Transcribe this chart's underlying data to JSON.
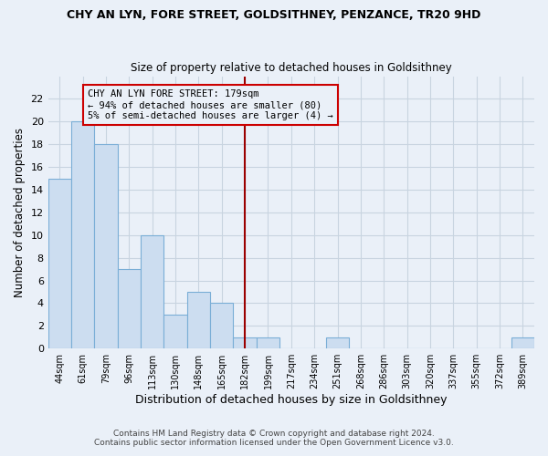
{
  "title": "CHY AN LYN, FORE STREET, GOLDSITHNEY, PENZANCE, TR20 9HD",
  "subtitle": "Size of property relative to detached houses in Goldsithney",
  "xlabel": "Distribution of detached houses by size in Goldsithney",
  "ylabel": "Number of detached properties",
  "bin_labels": [
    "44sqm",
    "61sqm",
    "79sqm",
    "96sqm",
    "113sqm",
    "130sqm",
    "148sqm",
    "165sqm",
    "182sqm",
    "199sqm",
    "217sqm",
    "234sqm",
    "251sqm",
    "268sqm",
    "286sqm",
    "303sqm",
    "320sqm",
    "337sqm",
    "355sqm",
    "372sqm",
    "389sqm"
  ],
  "bar_heights": [
    15,
    20,
    18,
    7,
    10,
    3,
    5,
    4,
    1,
    1,
    0,
    0,
    1,
    0,
    0,
    0,
    0,
    0,
    0,
    0,
    1
  ],
  "bar_color": "#ccddf0",
  "bar_edge_color": "#7aaed6",
  "vline_x_index": 8,
  "vline_color": "#9b0000",
  "annotation_text": "CHY AN LYN FORE STREET: 179sqm\n← 94% of detached houses are smaller (80)\n5% of semi-detached houses are larger (4) →",
  "annotation_box_color": "#cc0000",
  "ylim": [
    0,
    24
  ],
  "yticks": [
    0,
    2,
    4,
    6,
    8,
    10,
    12,
    14,
    16,
    18,
    20,
    22
  ],
  "footer_line1": "Contains HM Land Registry data © Crown copyright and database right 2024.",
  "footer_line2": "Contains public sector information licensed under the Open Government Licence v3.0.",
  "background_color": "#eaf0f8",
  "grid_color": "#c8d4e0"
}
